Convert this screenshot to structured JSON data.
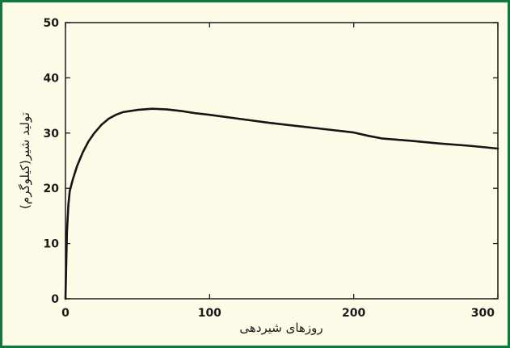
{
  "chart_data": {
    "type": "line",
    "title": "",
    "xlabel": "روزهای شیردهی",
    "ylabel": "تولید شیر(کیلوگرم)",
    "xlim": [
      0,
      300
    ],
    "ylim": [
      0,
      50
    ],
    "x_ticks": [
      "0",
      "100",
      "200",
      "300"
    ],
    "y_ticks": [
      "0",
      "10",
      "20",
      "30",
      "40",
      "50"
    ],
    "grid": false,
    "legend": "none",
    "series": [
      {
        "line_color": "#151515",
        "points": [
          [
            0,
            0
          ],
          [
            1,
            12
          ],
          [
            2,
            17
          ],
          [
            3,
            19.5
          ],
          [
            5,
            21.5
          ],
          [
            8,
            24
          ],
          [
            12,
            26.5
          ],
          [
            16,
            28.5
          ],
          [
            20,
            30
          ],
          [
            25,
            31.5
          ],
          [
            30,
            32.6
          ],
          [
            35,
            33.3
          ],
          [
            40,
            33.8
          ],
          [
            50,
            34.2
          ],
          [
            60,
            34.4
          ],
          [
            70,
            34.3
          ],
          [
            80,
            34.0
          ],
          [
            90,
            33.6
          ],
          [
            100,
            33.3
          ],
          [
            120,
            32.6
          ],
          [
            140,
            31.9
          ],
          [
            160,
            31.3
          ],
          [
            180,
            30.7
          ],
          [
            200,
            30.1
          ],
          [
            210,
            29.5
          ],
          [
            220,
            29.0
          ],
          [
            240,
            28.6
          ],
          [
            260,
            28.1
          ],
          [
            280,
            27.7
          ],
          [
            300,
            27.2
          ]
        ]
      }
    ]
  }
}
